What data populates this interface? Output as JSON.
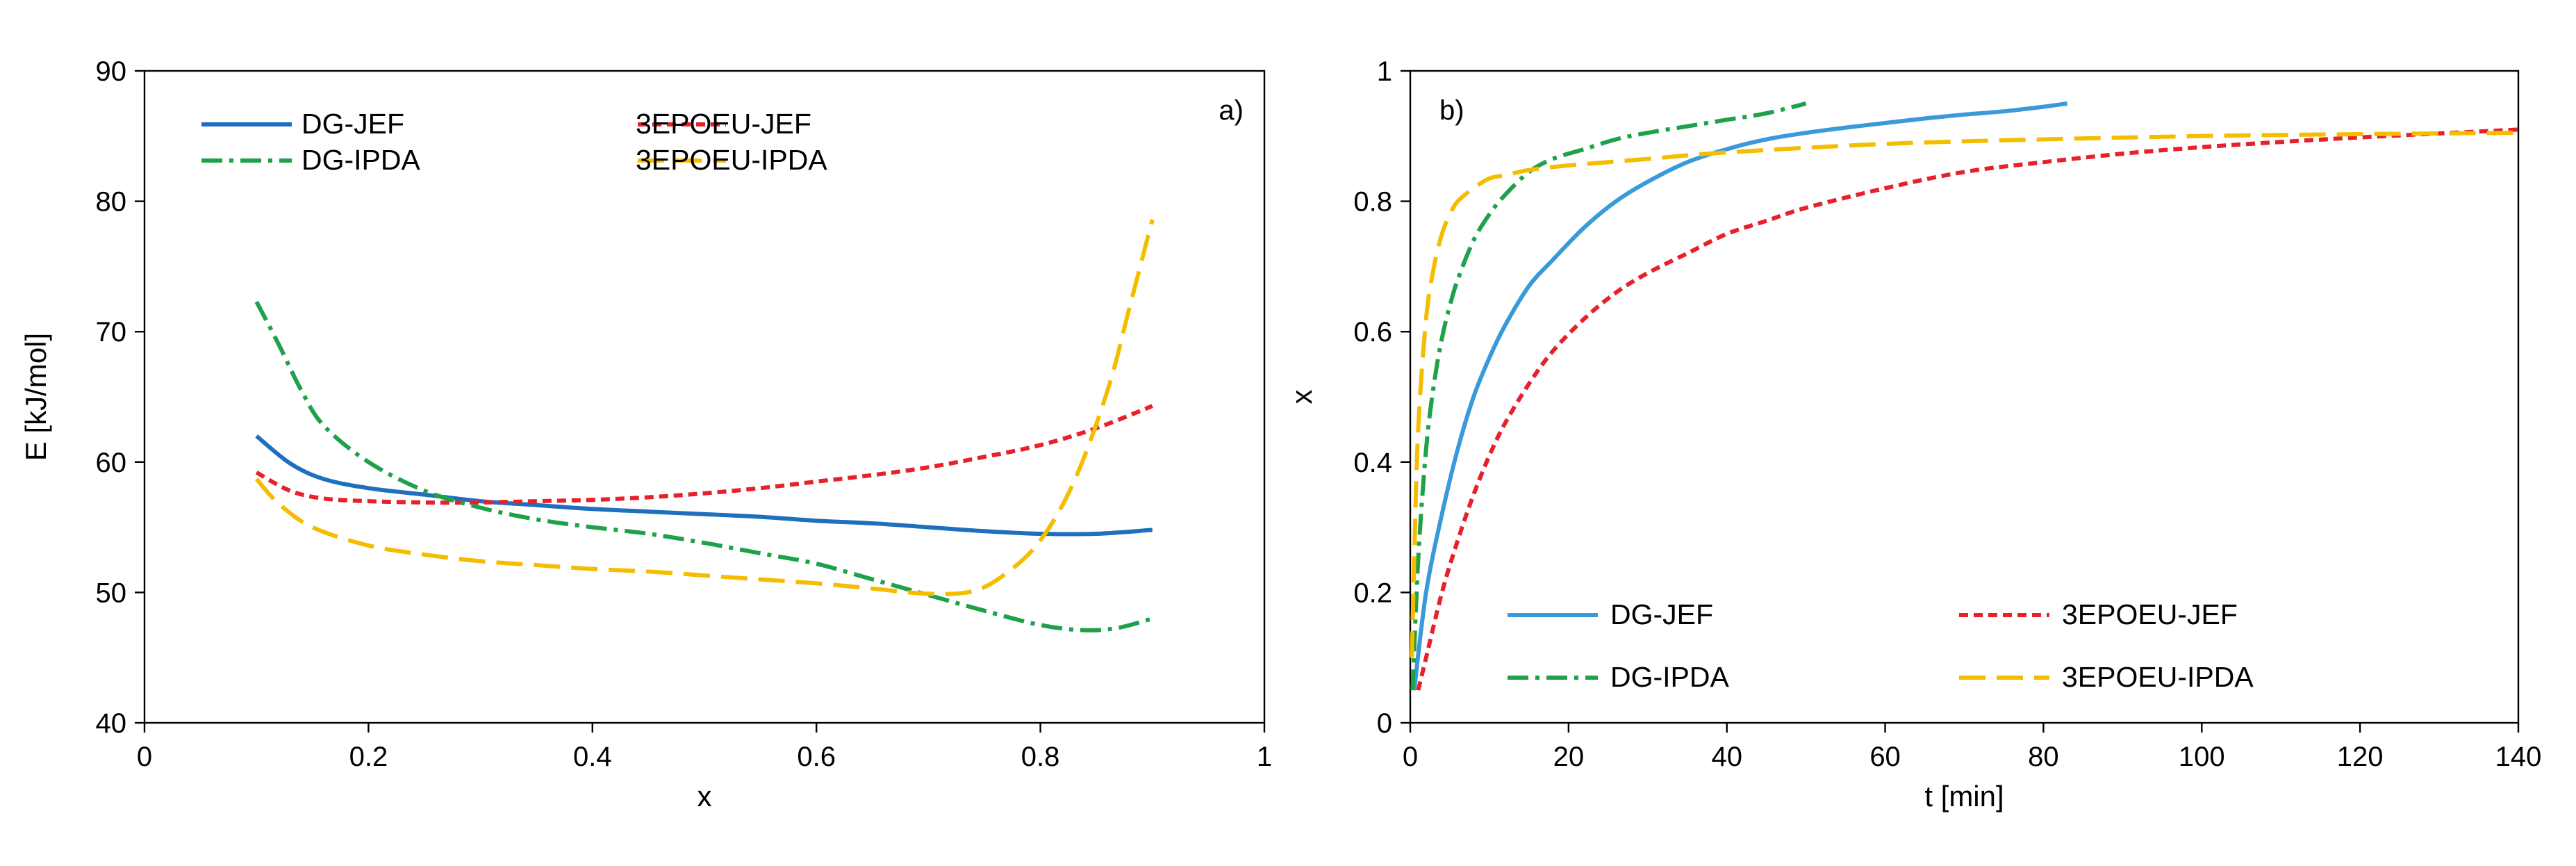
{
  "chart_data": [
    {
      "type": "line",
      "panel_label": "a)",
      "title": "",
      "xlabel": "x",
      "ylabel": "E [kJ/mol]",
      "xlim": [
        0,
        1
      ],
      "ylim": [
        40,
        90
      ],
      "xticks": [
        0,
        0.2,
        0.4,
        0.6,
        0.8,
        1
      ],
      "yticks": [
        40,
        50,
        60,
        70,
        80,
        90
      ],
      "xtick_labels": [
        "0",
        "0.2",
        "0.4",
        "0.6",
        "0.8",
        "1"
      ],
      "ytick_labels": [
        "40",
        "50",
        "60",
        "70",
        "80",
        "90"
      ],
      "legend_position": "top",
      "series": [
        {
          "name": "DG-JEF",
          "color": "#1f6fbf",
          "dash": "solid",
          "x": [
            0.1,
            0.13,
            0.16,
            0.2,
            0.25,
            0.3,
            0.35,
            0.4,
            0.45,
            0.5,
            0.55,
            0.6,
            0.65,
            0.7,
            0.75,
            0.8,
            0.85,
            0.9
          ],
          "y": [
            62.0,
            59.9,
            58.7,
            58.0,
            57.5,
            57.0,
            56.7,
            56.4,
            56.2,
            56.0,
            55.8,
            55.5,
            55.3,
            55.0,
            54.7,
            54.5,
            54.5,
            54.8
          ]
        },
        {
          "name": "3EPOEU-JEF",
          "color": "#e8202a",
          "dash": "short",
          "x": [
            0.1,
            0.13,
            0.16,
            0.2,
            0.25,
            0.3,
            0.35,
            0.4,
            0.45,
            0.5,
            0.55,
            0.6,
            0.65,
            0.7,
            0.75,
            0.8,
            0.85,
            0.9
          ],
          "y": [
            59.2,
            57.8,
            57.2,
            57.0,
            56.9,
            56.9,
            57.0,
            57.1,
            57.3,
            57.6,
            58.0,
            58.5,
            59.0,
            59.6,
            60.4,
            61.3,
            62.6,
            64.3
          ]
        },
        {
          "name": "DG-IPDA",
          "color": "#1fa14a",
          "dash": "dashdot",
          "x": [
            0.1,
            0.12,
            0.14,
            0.16,
            0.2,
            0.25,
            0.3,
            0.35,
            0.4,
            0.45,
            0.5,
            0.55,
            0.6,
            0.65,
            0.7,
            0.75,
            0.8,
            0.84,
            0.87,
            0.9
          ],
          "y": [
            72.3,
            69.0,
            65.5,
            62.8,
            60.0,
            57.8,
            56.5,
            55.6,
            55.0,
            54.5,
            53.8,
            53.0,
            52.2,
            51.0,
            49.8,
            48.6,
            47.5,
            47.1,
            47.3,
            48.0
          ]
        },
        {
          "name": "3EPOEU-IPDA",
          "color": "#f5bd00",
          "dash": "long",
          "x": [
            0.1,
            0.12,
            0.15,
            0.2,
            0.25,
            0.3,
            0.35,
            0.4,
            0.45,
            0.5,
            0.55,
            0.6,
            0.65,
            0.7,
            0.74,
            0.77,
            0.8,
            0.83,
            0.86,
            0.88,
            0.9
          ],
          "y": [
            58.7,
            56.8,
            55.0,
            53.6,
            52.9,
            52.4,
            52.1,
            51.8,
            51.6,
            51.3,
            51.0,
            50.7,
            50.3,
            49.9,
            50.1,
            51.5,
            54.0,
            58.5,
            65.5,
            72.0,
            78.6
          ]
        }
      ]
    },
    {
      "type": "line",
      "panel_label": "b)",
      "title": "",
      "xlabel": "t [min]",
      "ylabel": "x",
      "xlim": [
        0,
        140
      ],
      "ylim": [
        0,
        1
      ],
      "xticks": [
        0,
        20,
        40,
        60,
        80,
        100,
        120,
        140
      ],
      "yticks": [
        0,
        0.2,
        0.4,
        0.6,
        0.8,
        1
      ],
      "xtick_labels": [
        "0",
        "20",
        "40",
        "60",
        "80",
        "100",
        "120",
        "140"
      ],
      "ytick_labels": [
        "0",
        "0.2",
        "0.4",
        "0.6",
        "0.8",
        "1"
      ],
      "legend_position": "bottom",
      "series": [
        {
          "name": "DG-JEF",
          "color": "#3a9ad9",
          "dash": "solid",
          "x": [
            0.5,
            2,
            4,
            6,
            8,
            10,
            12,
            15,
            18,
            22,
            26,
            30,
            35,
            40,
            45,
            50,
            55,
            60,
            65,
            70,
            75,
            80,
            83
          ],
          "y": [
            0.05,
            0.2,
            0.32,
            0.42,
            0.5,
            0.56,
            0.61,
            0.67,
            0.71,
            0.76,
            0.8,
            0.83,
            0.86,
            0.88,
            0.895,
            0.905,
            0.913,
            0.92,
            0.927,
            0.933,
            0.938,
            0.945,
            0.95
          ]
        },
        {
          "name": "3EPOEU-JEF",
          "color": "#e8202a",
          "dash": "short",
          "x": [
            1,
            2,
            4,
            6,
            8,
            10,
            12,
            15,
            18,
            22,
            26,
            30,
            35,
            40,
            45,
            50,
            60,
            70,
            80,
            90,
            100,
            110,
            120,
            130,
            140
          ],
          "y": [
            0.05,
            0.1,
            0.2,
            0.28,
            0.35,
            0.41,
            0.46,
            0.52,
            0.57,
            0.62,
            0.66,
            0.69,
            0.72,
            0.75,
            0.77,
            0.79,
            0.82,
            0.845,
            0.86,
            0.873,
            0.883,
            0.891,
            0.898,
            0.904,
            0.91
          ]
        },
        {
          "name": "DG-IPDA",
          "color": "#1fa14a",
          "dash": "dashdot",
          "x": [
            0.3,
            1,
            2,
            3,
            4,
            5,
            6,
            8,
            10,
            12,
            15,
            18,
            22,
            26,
            30,
            35,
            40,
            45,
            50
          ],
          "y": [
            0.05,
            0.25,
            0.42,
            0.52,
            0.59,
            0.64,
            0.68,
            0.74,
            0.78,
            0.81,
            0.845,
            0.865,
            0.88,
            0.895,
            0.905,
            0.915,
            0.925,
            0.935,
            0.95
          ]
        },
        {
          "name": "3EPOEU-IPDA",
          "color": "#f5bd00",
          "dash": "long",
          "x": [
            0.2,
            0.5,
            1,
            2,
            3,
            4,
            5,
            6,
            8,
            10,
            12,
            15,
            20,
            30,
            40,
            60,
            80,
            100,
            120,
            140
          ],
          "y": [
            0.1,
            0.25,
            0.45,
            0.62,
            0.7,
            0.75,
            0.78,
            0.8,
            0.82,
            0.835,
            0.84,
            0.848,
            0.855,
            0.865,
            0.875,
            0.888,
            0.895,
            0.9,
            0.903,
            0.905
          ]
        }
      ]
    }
  ]
}
